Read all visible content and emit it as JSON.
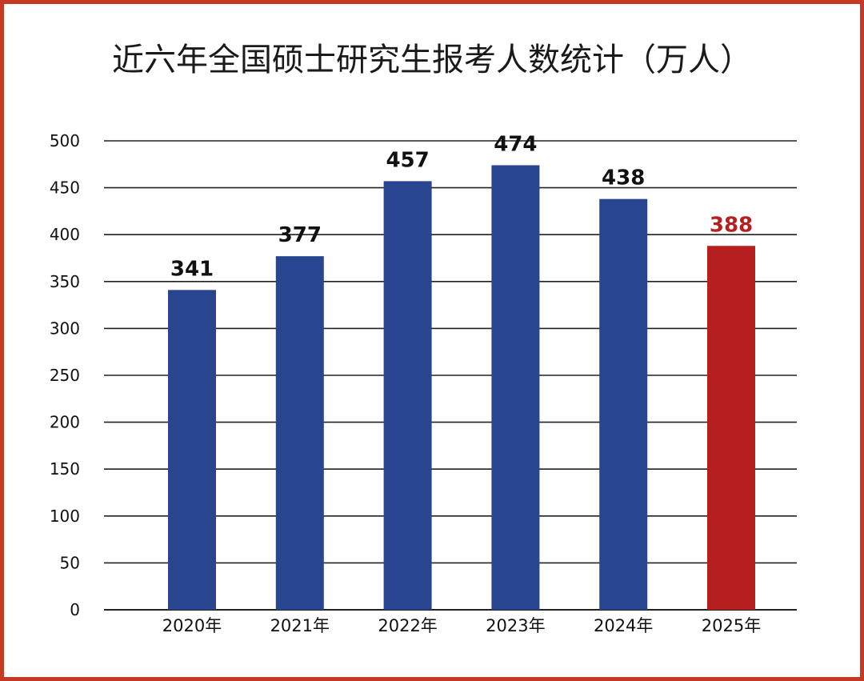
{
  "chart_data": {
    "type": "bar",
    "title": "近六年全国硕士研究生报考人数统计（万人）",
    "categories": [
      "2020年",
      "2021年",
      "2022年",
      "2023年",
      "2024年",
      "2025年"
    ],
    "values": [
      341,
      377,
      457,
      474,
      438,
      388
    ],
    "ylim": [
      0,
      500
    ],
    "yticks": [
      0,
      50,
      100,
      150,
      200,
      250,
      300,
      350,
      400,
      450,
      500
    ],
    "grid": true,
    "legend": "none",
    "colors": {
      "bar": "#2a4590",
      "highlight_bar": "#b51f1f",
      "highlight_label": "#b51f1f",
      "label": "#111111",
      "grid": "#222222",
      "frame": "#c43a22"
    },
    "highlight_index": 5
  }
}
